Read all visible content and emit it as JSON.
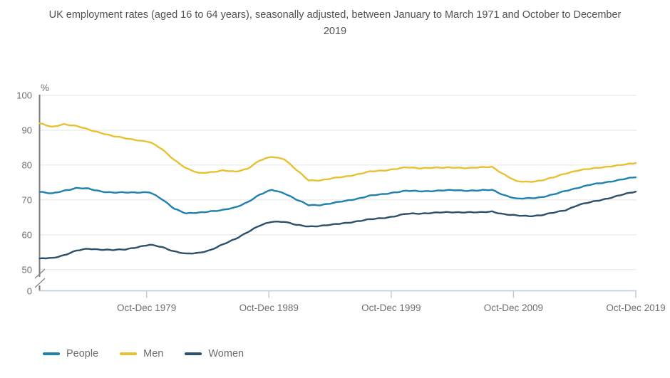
{
  "title": "UK employment rates (aged 16 to 64 years), seasonally adjusted, between January to March 1971 and October to December 2019",
  "chart_data": {
    "type": "line",
    "title": "UK employment rates (aged 16 to 64 years), seasonally adjusted, between January to March 1971 and October to December 2019",
    "ylabel": "%",
    "yticks": [
      100,
      90,
      80,
      70,
      60,
      50,
      0
    ],
    "axis_break_between": [
      50,
      0
    ],
    "plot_value_range": [
      50,
      100
    ],
    "x_range": [
      1971,
      2019.75
    ],
    "xticks": [
      {
        "year": 1979.75,
        "label": "Oct-Dec 1979"
      },
      {
        "year": 1989.75,
        "label": "Oct-Dec 1989"
      },
      {
        "year": 1999.75,
        "label": "Oct-Dec 1999"
      },
      {
        "year": 2009.75,
        "label": "Oct-Dec 2009"
      },
      {
        "year": 2019.75,
        "label": "Oct-Dec 2019"
      }
    ],
    "grid": "horizontal",
    "legend_position": "bottom-left",
    "years": [
      1971,
      1972,
      1973,
      1974,
      1975,
      1976,
      1977,
      1978,
      1979,
      1980,
      1981,
      1982,
      1983,
      1984,
      1985,
      1986,
      1987,
      1988,
      1989,
      1990,
      1991,
      1992,
      1993,
      1994,
      1995,
      1996,
      1997,
      1998,
      1999,
      2000,
      2001,
      2002,
      2003,
      2004,
      2005,
      2006,
      2007,
      2008,
      2009,
      2010,
      2011,
      2012,
      2013,
      2014,
      2015,
      2016,
      2017,
      2018,
      2019,
      2019.75
    ],
    "series": [
      {
        "name": "People",
        "color": "#1f81ae",
        "values": [
          72.3,
          71.8,
          72.7,
          73.4,
          73.2,
          72.5,
          72.1,
          72.1,
          72.2,
          72.2,
          70.2,
          67.6,
          66.1,
          66.3,
          66.8,
          67.1,
          67.8,
          69.4,
          71.5,
          72.9,
          72.0,
          70.1,
          68.5,
          68.6,
          69.1,
          69.7,
          70.4,
          71.2,
          71.6,
          72.2,
          72.6,
          72.5,
          72.6,
          72.7,
          72.8,
          72.7,
          72.7,
          72.9,
          71.4,
          70.3,
          70.5,
          70.8,
          71.5,
          72.6,
          73.5,
          74.3,
          74.9,
          75.5,
          76.1,
          76.5
        ]
      },
      {
        "name": "Men",
        "color": "#e7c131",
        "values": [
          92.0,
          90.9,
          91.8,
          91.2,
          90.2,
          89.3,
          88.3,
          87.7,
          87.2,
          86.6,
          84.6,
          81.6,
          79.0,
          77.7,
          78.0,
          78.4,
          78.1,
          79.0,
          81.3,
          82.4,
          81.8,
          78.6,
          75.6,
          75.7,
          76.2,
          76.7,
          77.4,
          78.1,
          78.4,
          78.9,
          79.3,
          79.1,
          79.3,
          79.2,
          79.3,
          79.2,
          79.3,
          79.5,
          77.3,
          75.3,
          75.2,
          75.6,
          76.4,
          77.6,
          78.5,
          78.9,
          79.4,
          79.8,
          80.2,
          80.6
        ]
      },
      {
        "name": "Women",
        "color": "#2d506b",
        "values": [
          53.2,
          53.3,
          54.2,
          55.4,
          56.0,
          55.8,
          55.6,
          55.8,
          56.5,
          57.1,
          56.5,
          55.3,
          54.5,
          54.8,
          55.7,
          57.2,
          58.8,
          60.8,
          62.6,
          63.8,
          63.8,
          62.8,
          62.4,
          62.6,
          62.9,
          63.4,
          63.9,
          64.4,
          64.8,
          65.3,
          66.0,
          66.1,
          66.3,
          66.4,
          66.5,
          66.5,
          66.4,
          66.7,
          65.9,
          65.5,
          65.4,
          65.6,
          66.3,
          67.1,
          68.5,
          69.3,
          70.1,
          70.9,
          71.8,
          72.4
        ]
      }
    ],
    "colors": {
      "gridline": "#e4e4e4",
      "y_axis": "#7a7a7a",
      "x_axis": "#b9c7dc",
      "tick_label": "#6e6e6e",
      "title_text": "#515151"
    }
  }
}
